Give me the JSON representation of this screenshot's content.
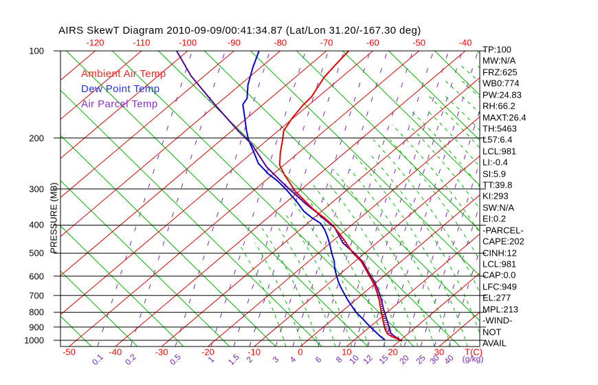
{
  "title": "AIRS SkewT Diagram 2010-09-09/00:41:34.87 (Lat/Lon 31.20/-167.30 deg)",
  "legend": {
    "items": [
      {
        "label": "Ambient Air Temp",
        "color": "#ff2222"
      },
      {
        "label": "Dew Point Temp",
        "color": "#2233dd"
      },
      {
        "label": "Air Parcel Temp",
        "color": "#8833cc"
      }
    ]
  },
  "pressure_axis": {
    "label": "PRESSURE (MB)",
    "ticks": [
      "100",
      "200",
      "300",
      "400",
      "500",
      "600",
      "700",
      "800",
      "900",
      "1000"
    ]
  },
  "temp_axis": {
    "label": "T(C)",
    "bottom_ticks": [
      "-50",
      "-40",
      "-30",
      "-20",
      "-10",
      "0",
      "10",
      "20",
      "30"
    ],
    "top_ticks": [
      "-120",
      "-110",
      "-100",
      "-90",
      "-80",
      "-70",
      "-60",
      "-50",
      "-40"
    ]
  },
  "mixing_axis": {
    "label": "(g/kg)",
    "ticks": [
      [
        "0.1",
        142
      ],
      [
        "0.2",
        190
      ],
      [
        "0.5",
        255
      ],
      [
        "1",
        307
      ],
      [
        "1.5",
        340
      ],
      [
        "2",
        363
      ],
      [
        "3",
        401
      ],
      [
        "4",
        426
      ],
      [
        "6",
        463
      ],
      [
        "8",
        493
      ],
      [
        "10",
        515
      ],
      [
        "12",
        535
      ],
      [
        "15",
        558
      ],
      [
        "20",
        588
      ],
      [
        "25",
        612
      ],
      [
        "30",
        632
      ],
      [
        "40",
        653
      ]
    ]
  },
  "side_panel": [
    "TP:100",
    "MW:N/A",
    "FRZ:625",
    "WB0:774",
    "PW:24.83",
    "RH:66.2",
    "MAXT:26.4",
    "TH:5463",
    "L57:6.4",
    "LCL:981",
    "LI:-0.4",
    "SI:5.9",
    "TT:39.8",
    "KI:293",
    "SW:N/A",
    "EI:0.2",
    "-PARCEL-",
    "CAPE:202",
    "CINH:12",
    "LCL:981",
    "CAP:0.0",
    "LFC:949",
    "EL:277",
    "MPL:213",
    "-WIND-",
    "NOT",
    "AVAIL"
  ],
  "colors": {
    "isotherm": "#e10000",
    "adiabat": "#00b400",
    "mixing": "#7722bb",
    "ambient": "#ee0000",
    "dewpoint": "#0000dd",
    "parcel": "#550099",
    "axis": "#000000"
  },
  "chart_data": {
    "type": "line",
    "variant": "skew-t-log-p",
    "title": "AIRS SkewT Diagram 2010-09-09/00:41:34.87 (Lat/Lon 31.20/-167.30 deg)",
    "xlabel": "T(C)",
    "ylabel": "PRESSURE (MB)",
    "ylim_mb": [
      100,
      1050
    ],
    "bottom_temp_ticks_c": [
      -50,
      -40,
      -30,
      -20,
      -10,
      0,
      10,
      20,
      30
    ],
    "top_temp_ticks_c": [
      -120,
      -110,
      -100,
      -90,
      -80,
      -70,
      -60,
      -50,
      -40
    ],
    "mixing_ratio_lines_gkg": [
      0.1,
      0.2,
      0.5,
      1,
      1.5,
      2,
      3,
      4,
      6,
      8,
      10,
      12,
      15,
      20,
      25,
      30,
      40
    ],
    "legend_position": "top-left-inside",
    "grid": "skew-t background: red isotherms, green dry adiabats, green dashed moist adiabats, purple dashed mixing-ratio lines, black isobars every 100 mb",
    "series": [
      {
        "name": "Ambient Air Temp",
        "color": "#ee0000",
        "units": [
          "mb",
          "C"
        ],
        "points": [
          [
            100,
            -65.2
          ],
          [
            110,
            -64.6
          ],
          [
            123,
            -63.8
          ],
          [
            144,
            -61.5
          ],
          [
            154,
            -61.2
          ],
          [
            171,
            -60.2
          ],
          [
            189,
            -58.8
          ],
          [
            201,
            -57.0
          ],
          [
            225,
            -53.9
          ],
          [
            248,
            -50.9
          ],
          [
            268,
            -47.4
          ],
          [
            289,
            -43.6
          ],
          [
            303,
            -41.3
          ],
          [
            332,
            -35.9
          ],
          [
            358,
            -31.4
          ],
          [
            377,
            -27.8
          ],
          [
            402,
            -23.8
          ],
          [
            450,
            -17.8
          ],
          [
            499,
            -12.6
          ],
          [
            533,
            -8.7
          ],
          [
            581,
            -4.6
          ],
          [
            615,
            -1.9
          ],
          [
            646,
            0.4
          ],
          [
            683,
            2.7
          ],
          [
            725,
            5.1
          ],
          [
            774,
            7.5
          ],
          [
            825,
            9.9
          ],
          [
            870,
            11.9
          ],
          [
            916,
            13.9
          ],
          [
            950,
            15.6
          ],
          [
            971,
            17.2
          ],
          [
            987,
            18.9
          ],
          [
            1003,
            20.5
          ]
        ]
      },
      {
        "name": "Dew Point Temp",
        "color": "#0000dd",
        "units": [
          "mb",
          "C"
        ],
        "points": [
          [
            100,
            -84.6
          ],
          [
            114,
            -81.7
          ],
          [
            131,
            -78.3
          ],
          [
            146,
            -75.0
          ],
          [
            153,
            -74.4
          ],
          [
            171,
            -70.4
          ],
          [
            189,
            -66.8
          ],
          [
            203,
            -64.1
          ],
          [
            228,
            -59.0
          ],
          [
            245,
            -55.9
          ],
          [
            266,
            -51.1
          ],
          [
            281,
            -47.4
          ],
          [
            302,
            -43.1
          ],
          [
            331,
            -38.0
          ],
          [
            358,
            -33.9
          ],
          [
            377,
            -30.5
          ],
          [
            394,
            -27.2
          ],
          [
            416,
            -24.5
          ],
          [
            439,
            -22.2
          ],
          [
            467,
            -19.7
          ],
          [
            500,
            -17.1
          ],
          [
            533,
            -14.5
          ],
          [
            564,
            -12.6
          ],
          [
            589,
            -10.9
          ],
          [
            627,
            -8.4
          ],
          [
            662,
            -6.0
          ],
          [
            692,
            -3.9
          ],
          [
            725,
            -1.7
          ],
          [
            759,
            0.6
          ],
          [
            799,
            3.2
          ],
          [
            840,
            6.2
          ],
          [
            879,
            8.8
          ],
          [
            926,
            11.9
          ],
          [
            966,
            14.5
          ],
          [
            997,
            16.6
          ]
        ]
      },
      {
        "name": "Air Parcel Temp",
        "color": "#550099",
        "units": [
          "mb",
          "C"
        ],
        "points": [
          [
            100,
            -102.4
          ],
          [
            122,
            -92.9
          ],
          [
            153,
            -80.5
          ],
          [
            189,
            -68.6
          ],
          [
            210,
            -62.3
          ],
          [
            252,
            -53.2
          ],
          [
            281,
            -46.7
          ],
          [
            302,
            -42.3
          ],
          [
            317,
            -39.3
          ],
          [
            339,
            -35.1
          ],
          [
            362,
            -30.7
          ],
          [
            384,
            -27.0
          ],
          [
            408,
            -23.0
          ],
          [
            462,
            -17.2
          ],
          [
            500,
            -12.2
          ],
          [
            536,
            -8.1
          ],
          [
            585,
            -4.0
          ],
          [
            618,
            -1.3
          ],
          [
            650,
            1.0
          ],
          [
            687,
            3.4
          ],
          [
            725,
            5.6
          ],
          [
            782,
            8.5
          ],
          [
            825,
            10.7
          ],
          [
            861,
            12.4
          ],
          [
            908,
            14.6
          ],
          [
            944,
            16.1
          ],
          [
            971,
            17.9
          ],
          [
            987,
            19.2
          ],
          [
            1008,
            20.6
          ]
        ]
      }
    ],
    "hatched_area": "region between Ambient Air Temp and Air Parcel Temp curves from ~300 mb down to ~1005 mb (CAPE/CIN area), purple horizontal hatching"
  }
}
